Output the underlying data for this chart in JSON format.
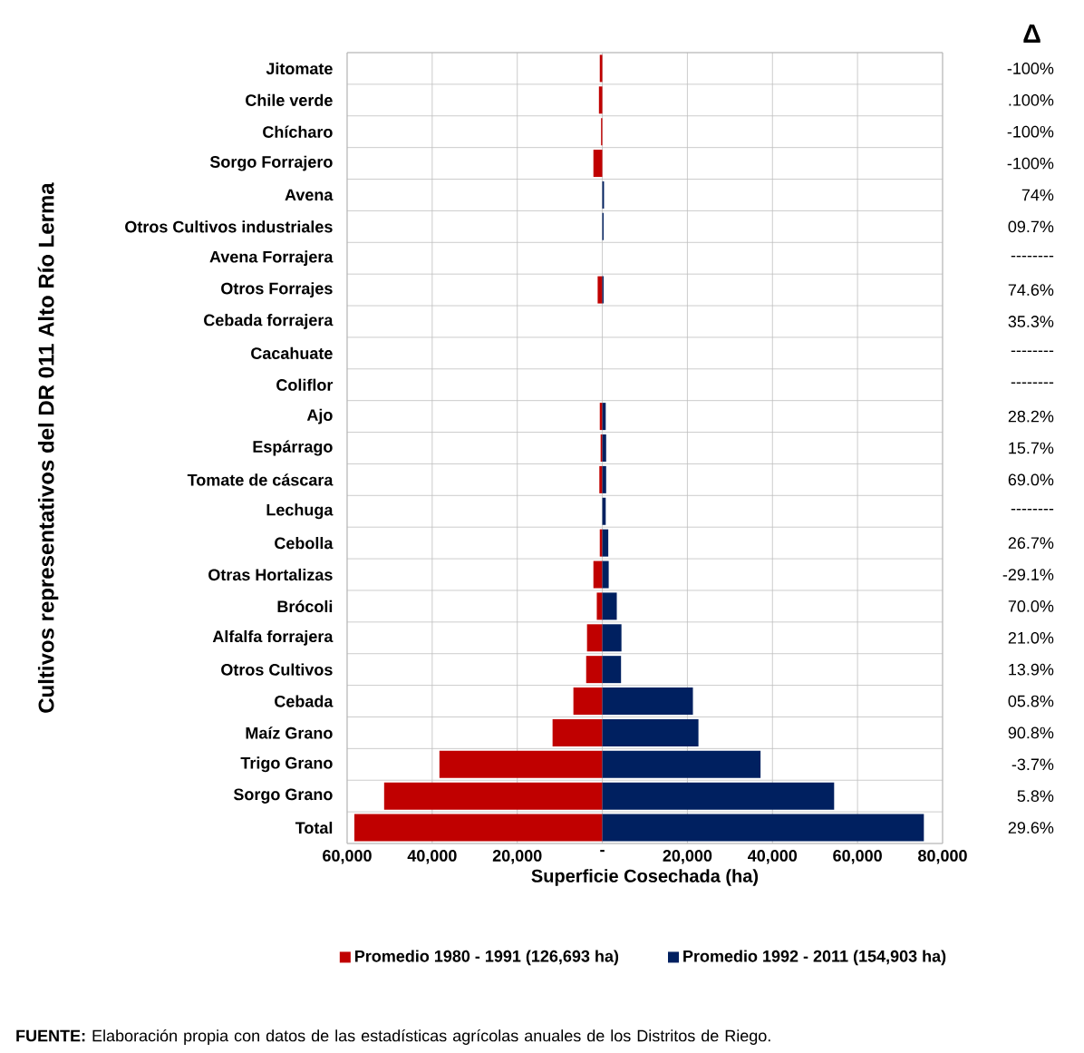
{
  "chart_data": {
    "type": "bar",
    "orientation": "horizontal",
    "xlabel": "Superficie Cosechada (ha)",
    "ylabel": "Cultivos representativos del DR 011 Alto Río Lerma",
    "categories": [
      "Jitomate",
      "Chile verde",
      "Chícharo",
      "Sorgo Forrajero",
      "Avena",
      "Otros Cultivos industriales",
      "Avena Forrajera",
      "Otros Forrajes",
      "Cebada forrajera",
      "Cacahuate",
      "Coliflor",
      "Ajo",
      "Espárrago",
      "Tomate de cáscara",
      "Lechuga",
      "Cebolla",
      "Otras Hortalizas",
      "Brócoli",
      "Alfalfa forrajera",
      "Otros Cultivos",
      "Cebada",
      "Maíz Grano",
      "Trigo Grano",
      "Sorgo Grano",
      "Total"
    ],
    "series": [
      {
        "name": "Promedio 1980 - 1991 (126,693 ha)",
        "color": "#c00000",
        "values": [
          -600,
          -800,
          -300,
          -2100,
          null,
          null,
          null,
          -1100,
          null,
          null,
          null,
          -600,
          -400,
          -700,
          null,
          -600,
          -2100,
          -1300,
          -3600,
          -3800,
          -6800,
          -11700,
          -38300,
          -51300,
          -58300
        ]
      },
      {
        "name": "Promedio 1992 - 2011 (154,903 ha)",
        "color": "#002060",
        "values": [
          null,
          null,
          null,
          null,
          400,
          300,
          null,
          300,
          null,
          null,
          null,
          800,
          900,
          900,
          800,
          1400,
          1500,
          3400,
          4500,
          4400,
          21300,
          22600,
          37200,
          54500,
          75600
        ]
      }
    ],
    "xlim": [
      -60000,
      80000
    ],
    "xticks": [
      {
        "value": -60000,
        "label": "60,000"
      },
      {
        "value": -40000,
        "label": "40,000"
      },
      {
        "value": -20000,
        "label": "20,000"
      },
      {
        "value": 0,
        "label": "-"
      },
      {
        "value": 20000,
        "label": "20,000"
      },
      {
        "value": 40000,
        "label": "40,000"
      },
      {
        "value": 60000,
        "label": "60,000"
      },
      {
        "value": 80000,
        "label": "80,000"
      }
    ],
    "grid": true,
    "legend": "bottom",
    "annotations": [
      "Δ",
      "-100%",
      ".100%",
      "-100%",
      "-100%",
      "74%",
      "09.7%",
      "--------",
      "74.6%",
      "35.3%",
      "--------",
      "--------",
      "28.2%",
      "15.7%",
      "69.0%",
      "--------",
      "26.7%",
      "-29.1%",
      "70.0%",
      "21.0%",
      "13.9%",
      "05.8%",
      "90.8%",
      "-3.7%",
      "5.8%",
      "29.6%",
      "**FUENTE:** Elaboración propia con datos de las estadísticas agrícolas anuales de los Distritos de Riego."
    ]
  }
}
